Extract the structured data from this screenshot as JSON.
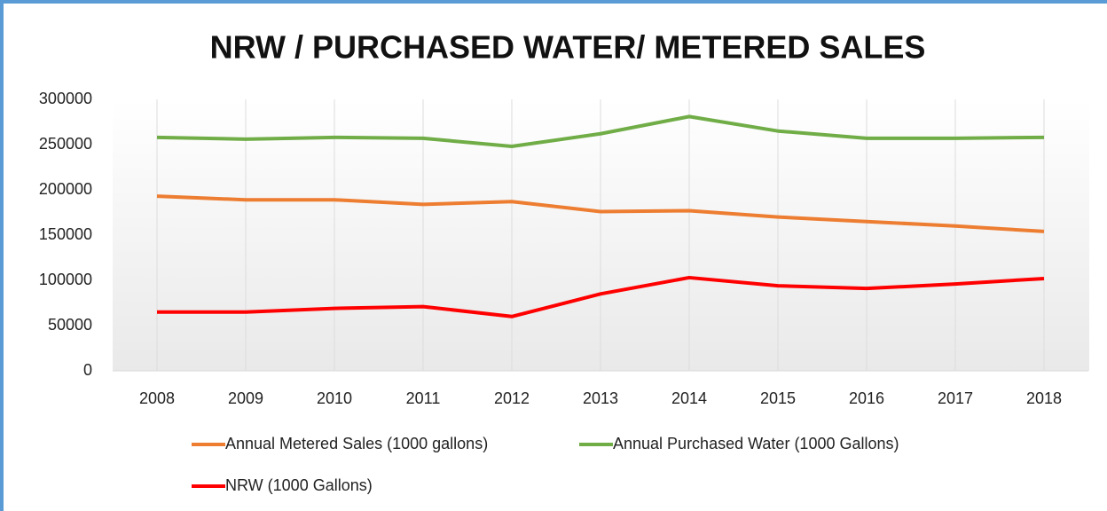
{
  "chart_data": {
    "type": "line",
    "title": "NRW / PURCHASED WATER/ METERED SALES",
    "categories": [
      "2008",
      "2009",
      "2010",
      "2011",
      "2012",
      "2013",
      "2014",
      "2015",
      "2016",
      "2017",
      "2018"
    ],
    "series": [
      {
        "name": "Annual Metered Sales (1000 gallons)",
        "color": "#ed7d31",
        "values": [
          193000,
          189000,
          189000,
          184000,
          187000,
          176000,
          177000,
          170000,
          165000,
          160000,
          154000
        ]
      },
      {
        "name": "Annual Purchased Water (1000 Gallons)",
        "color": "#70ad47",
        "values": [
          258000,
          256000,
          258000,
          257000,
          248000,
          262000,
          281000,
          265000,
          257000,
          257000,
          258000
        ]
      },
      {
        "name": "NRW (1000 Gallons)",
        "color": "#ff0000",
        "values": [
          65000,
          65000,
          69000,
          71000,
          60000,
          85000,
          103000,
          94000,
          91000,
          96000,
          102000
        ]
      }
    ],
    "ylim": [
      0,
      300000
    ],
    "yticks": [
      0,
      50000,
      100000,
      150000,
      200000,
      250000,
      300000
    ],
    "grid": true,
    "legend": "bottom"
  }
}
